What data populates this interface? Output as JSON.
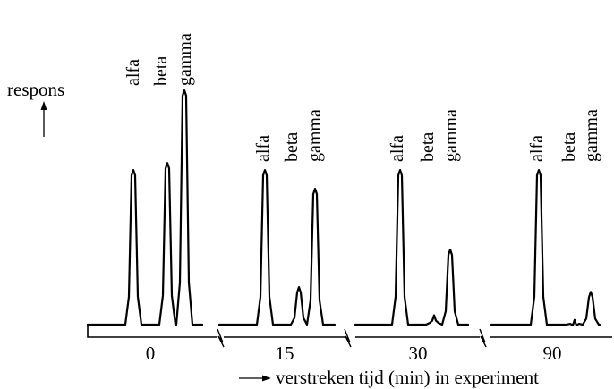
{
  "chart_data": {
    "type": "line",
    "ylabel": "respons",
    "xlabel": "verstreken tijd (min) in experiment",
    "peak_labels": [
      "alfa",
      "beta",
      "gamma"
    ],
    "panels": [
      {
        "time_label": "0",
        "peaks": [
          {
            "name": "alfa",
            "height": 0.66
          },
          {
            "name": "beta",
            "height": 0.69
          },
          {
            "name": "gamma",
            "height": 1.0
          }
        ]
      },
      {
        "time_label": "15",
        "peaks": [
          {
            "name": "alfa",
            "height": 0.66
          },
          {
            "name": "beta",
            "height": 0.16
          },
          {
            "name": "gamma",
            "height": 0.58
          }
        ]
      },
      {
        "time_label": "30",
        "peaks": [
          {
            "name": "alfa",
            "height": 0.66
          },
          {
            "name": "beta",
            "height": 0.04
          },
          {
            "name": "gamma",
            "height": 0.32
          }
        ]
      },
      {
        "time_label": "90",
        "peaks": [
          {
            "name": "alfa",
            "height": 0.66
          },
          {
            "name": "beta",
            "height": 0.02
          },
          {
            "name": "gamma",
            "height": 0.14
          }
        ]
      }
    ]
  }
}
